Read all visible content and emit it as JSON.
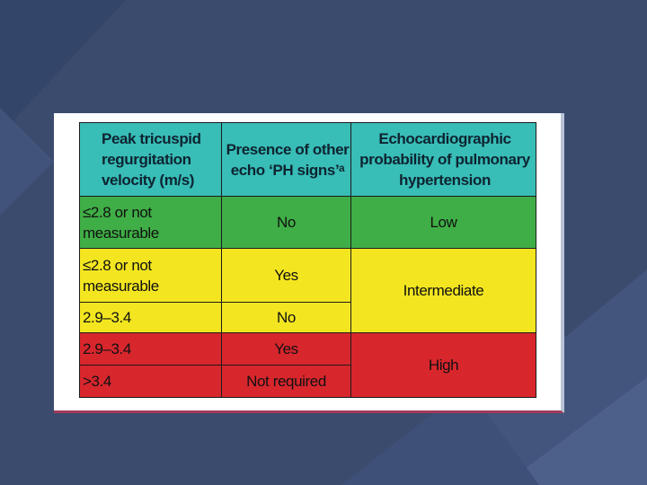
{
  "background_color": "#3a4b6e",
  "table": {
    "headers": [
      "Peak tricuspid regurgitation velocity (m/s)",
      "Presence of other echo ‘PH signs’ᵃ",
      "Echocardiographic probability of pulmonary hypertension"
    ],
    "rows": {
      "r1_velocity": "≤2.8 or not measurable",
      "r1_signs": "No",
      "r1_probability": "Low",
      "r2_velocity": "≤2.8 or not measurable",
      "r2_signs": "Yes",
      "r3_velocity": "2.9–3.4",
      "r3_signs": "No",
      "r23_probability": "Intermediate",
      "r4_velocity": "2.9–3.4",
      "r4_signs": "Yes",
      "r5_velocity": ">3.4",
      "r5_signs": "Not required",
      "r45_probability": "High"
    },
    "colors": {
      "header": "#38bdb7",
      "low": "#3fae46",
      "intermediate": "#f3e620",
      "high": "#d8262d"
    }
  }
}
